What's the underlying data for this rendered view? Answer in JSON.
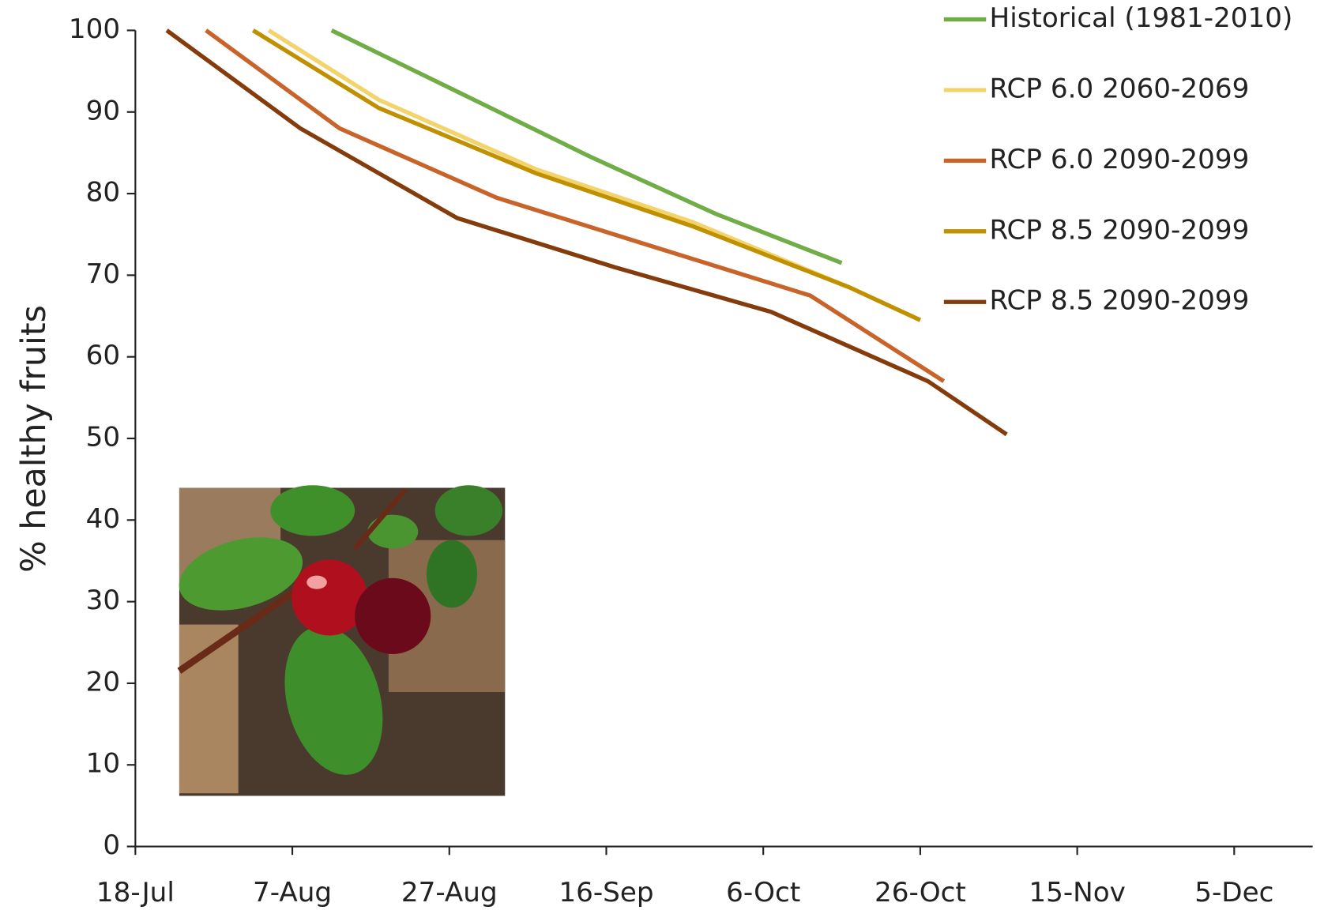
{
  "chart_data": {
    "type": "line",
    "ylabel": "% healthy fruits",
    "xlim": [
      199,
      349
    ],
    "xticks": [
      {
        "value": 199,
        "label": "18-Jul"
      },
      {
        "value": 219,
        "label": "7-Aug"
      },
      {
        "value": 239,
        "label": "27-Aug"
      },
      {
        "value": 259,
        "label": "16-Sep"
      },
      {
        "value": 279,
        "label": "6-Oct"
      },
      {
        "value": 299,
        "label": "26-Oct"
      },
      {
        "value": 319,
        "label": "15-Nov"
      },
      {
        "value": 339,
        "label": "5-Dec"
      }
    ],
    "ylim": [
      0,
      100
    ],
    "yticks": [
      0,
      10,
      20,
      30,
      40,
      50,
      60,
      70,
      80,
      90,
      100
    ],
    "grid": false,
    "legend": "upper right",
    "series": [
      {
        "name": "Historical (1981-2010)",
        "color": "#70ad47",
        "x": [
          224,
          240,
          257,
          273,
          289
        ],
        "values": [
          100,
          92.5,
          84.5,
          77.5,
          71.5
        ]
      },
      {
        "name": "RCP 6.0 2060-2069",
        "color": "#f3d36c",
        "x": [
          216,
          230,
          250,
          270,
          290,
          299
        ],
        "values": [
          100,
          91.5,
          83,
          76.5,
          68.5,
          64.5
        ]
      },
      {
        "name": "RCP 6.0 2090-2099",
        "color": "#c8642a",
        "x": [
          208,
          225,
          245,
          265,
          285,
          302
        ],
        "values": [
          100,
          88,
          79.5,
          73.5,
          67.5,
          57
        ]
      },
      {
        "name": "RCP 8.5 2090-2099",
        "color": "#bf9000",
        "x": [
          214,
          230,
          250,
          270,
          290,
          299
        ],
        "values": [
          100,
          90.5,
          82.5,
          76,
          68.5,
          64.5
        ]
      },
      {
        "name": "RCP 8.5 2090-2099",
        "color": "#843c0c",
        "x": [
          203,
          220,
          240,
          260,
          280,
          300,
          310
        ],
        "values": [
          100,
          88,
          77,
          71,
          65.5,
          57,
          50.5
        ]
      }
    ]
  }
}
